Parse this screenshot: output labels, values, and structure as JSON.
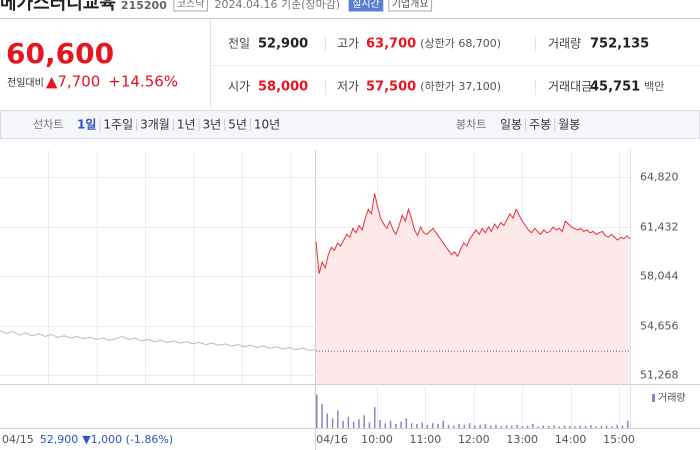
{
  "header": {
    "name": "메가스터디교육",
    "code": "215200",
    "market": "코스닥",
    "date": "2024.04.16 기준(장마감)",
    "realtime": "실시간",
    "company": "기업개요"
  },
  "price": {
    "current": "60,600",
    "change_label": "전일대비",
    "change": "▲7,700",
    "rate": "+14.56%"
  },
  "table": {
    "rows": [
      [
        [
          "전일",
          "52,900"
        ],
        [
          "고가",
          "63,700",
          "(상한가 68,700)"
        ],
        [
          "거래량",
          "752,135"
        ]
      ],
      [
        [
          "시가",
          "58,000"
        ],
        [
          "저가",
          "57,500",
          "(하한가 37,100)"
        ],
        [
          "거래대금",
          "45,751",
          "백만"
        ]
      ]
    ]
  },
  "tabs": {
    "line_label": "선차트",
    "line_items": [
      "1일",
      "1주일",
      "3개월",
      "1년",
      "3년",
      "5년",
      "10년"
    ],
    "candle_label": "봉차트",
    "candle_items": [
      "일봉",
      "주봉",
      "월봉"
    ]
  },
  "chart": {
    "type": "line",
    "ylim": [
      51268,
      64820
    ],
    "yticks": [
      {
        "value": 51268,
        "label": "51,268"
      },
      {
        "value": 54656,
        "label": "54,656"
      },
      {
        "value": 58044,
        "label": "58,044"
      },
      {
        "value": 61432,
        "label": "61,432"
      },
      {
        "value": 64820,
        "label": "64,820"
      }
    ],
    "x_labels": [
      "04/15",
      "04/16",
      "10:00",
      "11:00",
      "12:00",
      "13:00",
      "14:00",
      "15:00"
    ],
    "prev_close": 52900,
    "series": [
      {
        "color": "#bbbbbb",
        "values": [
          54300,
          54100,
          54250,
          54000,
          54150,
          53950,
          54100,
          53900,
          54050,
          53850,
          53950,
          53800,
          53900,
          53750,
          53850,
          53700,
          53800,
          53650,
          53750,
          53900,
          53700,
          53800,
          53600,
          53700,
          53550,
          53650,
          53500,
          53600,
          53450,
          53550,
          53400,
          53500,
          53350,
          53450,
          53300,
          53400,
          53250,
          53350,
          53200,
          53300,
          53150,
          53250,
          53100,
          53200,
          53050,
          53150,
          53000,
          53100,
          52950,
          53000
        ]
      },
      {
        "color": "#e8303a",
        "fill": "#fde8ea",
        "values": [
          60400,
          58200,
          59000,
          58600,
          59500,
          60000,
          59800,
          60300,
          60100,
          60500,
          60900,
          60700,
          61300,
          61000,
          61500,
          61200,
          62000,
          62600,
          62300,
          63700,
          62800,
          62000,
          61600,
          61300,
          61800,
          61200,
          60900,
          61500,
          62200,
          61800,
          62600,
          62000,
          61200,
          60800,
          61400,
          61000,
          60900,
          61100,
          61300,
          61000,
          60700,
          60400,
          60100,
          59800,
          59500,
          59700,
          59400,
          59900,
          60300,
          60100,
          60600,
          60900,
          61200,
          60900,
          61300,
          61000,
          61400,
          61100,
          61600,
          61300,
          61700,
          61500,
          61900,
          62300,
          62000,
          62600,
          62200,
          61800,
          61500,
          61200,
          61000,
          61300,
          61100,
          60900,
          61200,
          61000,
          61100,
          61400,
          61200,
          61300,
          61100,
          61800,
          61600,
          61400,
          61300,
          61200,
          61300,
          61100,
          61200,
          61000,
          61100,
          60900,
          61000,
          61100,
          60800,
          60700,
          60900,
          60700,
          60500,
          60700,
          60600,
          60800,
          60600
        ]
      }
    ],
    "prev_day": {
      "close": "52,900",
      "change": "▼1,000 (-1.86%)"
    },
    "volume": {
      "label": "거래량",
      "color": "#8e82c8",
      "ylim": [
        0,
        45000
      ],
      "values": [
        42000,
        30000,
        18000,
        12000,
        22000,
        9000,
        14000,
        8000,
        11000,
        16000,
        7000,
        26000,
        10000,
        6000,
        9000,
        5000,
        8000,
        12000,
        6000,
        5000,
        7000,
        4000,
        6000,
        5000,
        9000,
        4000,
        3000,
        5000,
        4000,
        6000,
        3000,
        4000,
        5000,
        3000,
        4000,
        2500,
        3500,
        3000,
        4000,
        2500,
        3000,
        5000,
        2000,
        3000,
        2500,
        3500,
        2000,
        3000,
        2500,
        2000,
        3000,
        2500,
        3500,
        2000,
        2500,
        3000,
        2000,
        4000,
        3000,
        9000
      ]
    }
  }
}
